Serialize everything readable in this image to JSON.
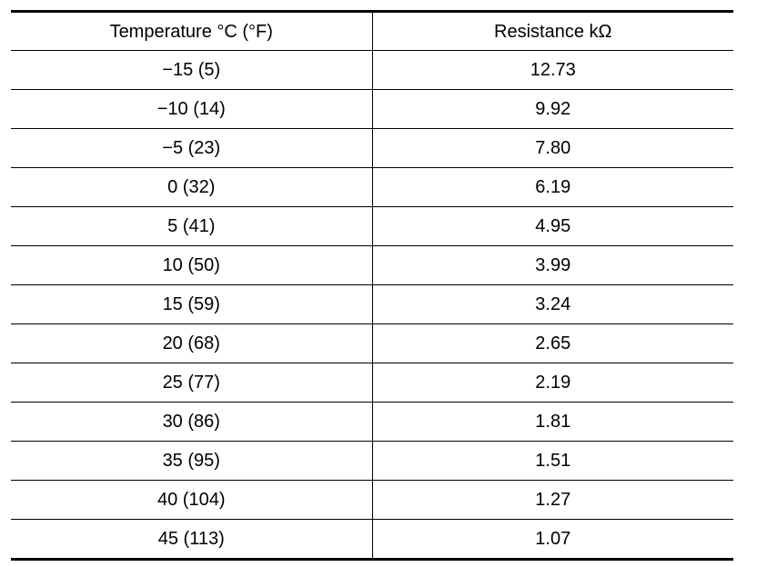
{
  "table": {
    "headers": {
      "temperature": "Temperature °C (°F)",
      "resistance": "Resistance kΩ"
    },
    "rows": [
      {
        "temperature": "−15 (5)",
        "resistance": "12.73"
      },
      {
        "temperature": "−10 (14)",
        "resistance": "9.92"
      },
      {
        "temperature": "−5 (23)",
        "resistance": "7.80"
      },
      {
        "temperature": "0 (32)",
        "resistance": "6.19"
      },
      {
        "temperature": "5 (41)",
        "resistance": "4.95"
      },
      {
        "temperature": "10 (50)",
        "resistance": "3.99"
      },
      {
        "temperature": "15 (59)",
        "resistance": "3.24"
      },
      {
        "temperature": "20 (68)",
        "resistance": "2.65"
      },
      {
        "temperature": "25 (77)",
        "resistance": "2.19"
      },
      {
        "temperature": "30 (86)",
        "resistance": "1.81"
      },
      {
        "temperature": "35 (95)",
        "resistance": "1.51"
      },
      {
        "temperature": "40 (104)",
        "resistance": "1.27"
      },
      {
        "temperature": "45 (113)",
        "resistance": "1.07"
      }
    ]
  }
}
